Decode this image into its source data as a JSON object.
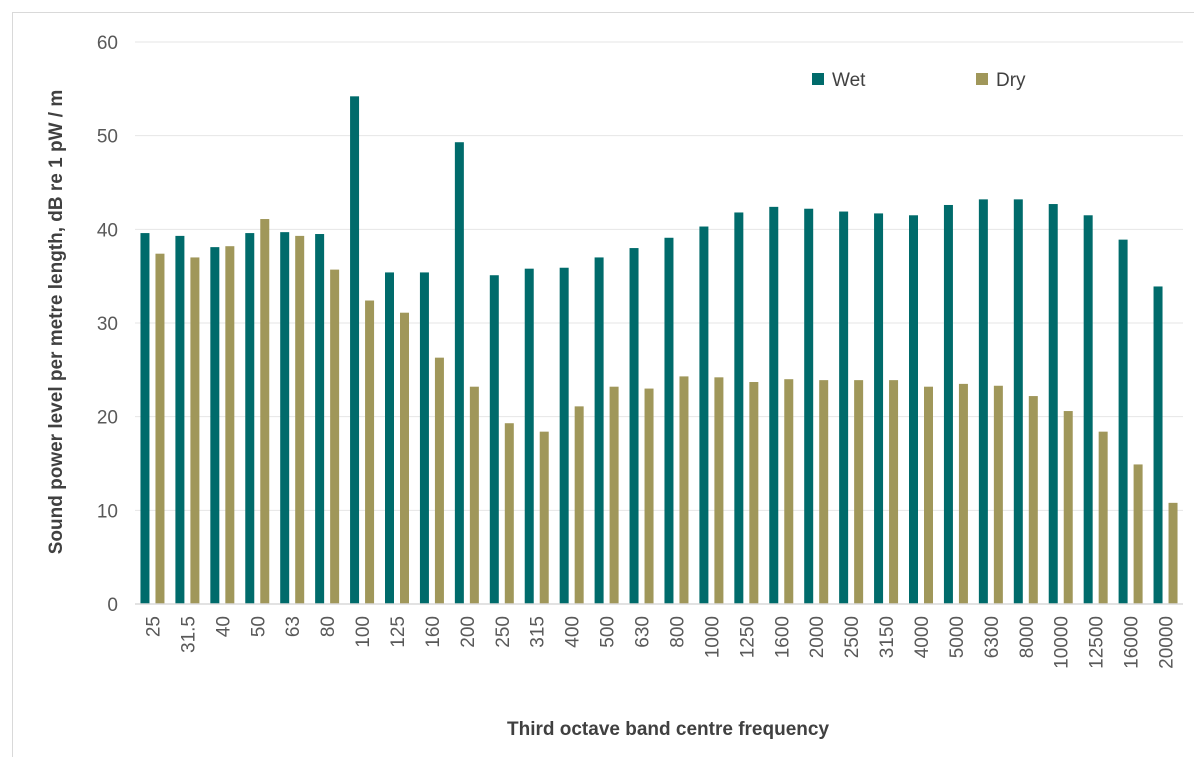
{
  "chart_data": {
    "type": "bar",
    "title": "",
    "xlabel": "Third octave band centre frequency",
    "ylabel": "Sound power level per metre length, dB re 1 pW / m",
    "ylim": [
      0,
      60
    ],
    "yticks": [
      0,
      10,
      20,
      30,
      40,
      50,
      60
    ],
    "grid": true,
    "legend_position": "top-right",
    "categories": [
      "25",
      "31.5",
      "40",
      "50",
      "63",
      "80",
      "100",
      "125",
      "160",
      "200",
      "250",
      "315",
      "400",
      "500",
      "630",
      "800",
      "1000",
      "1250",
      "1600",
      "2000",
      "2500",
      "3150",
      "4000",
      "5000",
      "6300",
      "8000",
      "10000",
      "12500",
      "16000",
      "20000"
    ],
    "series": [
      {
        "name": "Wet",
        "color": "#006b6b",
        "values": [
          39.6,
          39.3,
          38.1,
          39.6,
          39.7,
          39.5,
          54.2,
          35.4,
          35.4,
          49.3,
          35.1,
          35.8,
          35.9,
          37.0,
          38.0,
          39.1,
          40.3,
          41.8,
          42.4,
          42.2,
          41.9,
          41.7,
          41.5,
          42.6,
          43.2,
          43.2,
          42.7,
          41.5,
          38.9,
          33.9
        ]
      },
      {
        "name": "Dry",
        "color": "#a0975a",
        "values": [
          37.4,
          37.0,
          38.2,
          41.1,
          39.3,
          35.7,
          32.4,
          31.1,
          26.3,
          23.2,
          19.3,
          18.4,
          21.1,
          23.2,
          23.0,
          24.3,
          24.2,
          23.7,
          24.0,
          23.9,
          23.9,
          23.9,
          23.2,
          23.5,
          23.3,
          22.2,
          20.6,
          18.4,
          14.9,
          10.8
        ]
      }
    ]
  }
}
